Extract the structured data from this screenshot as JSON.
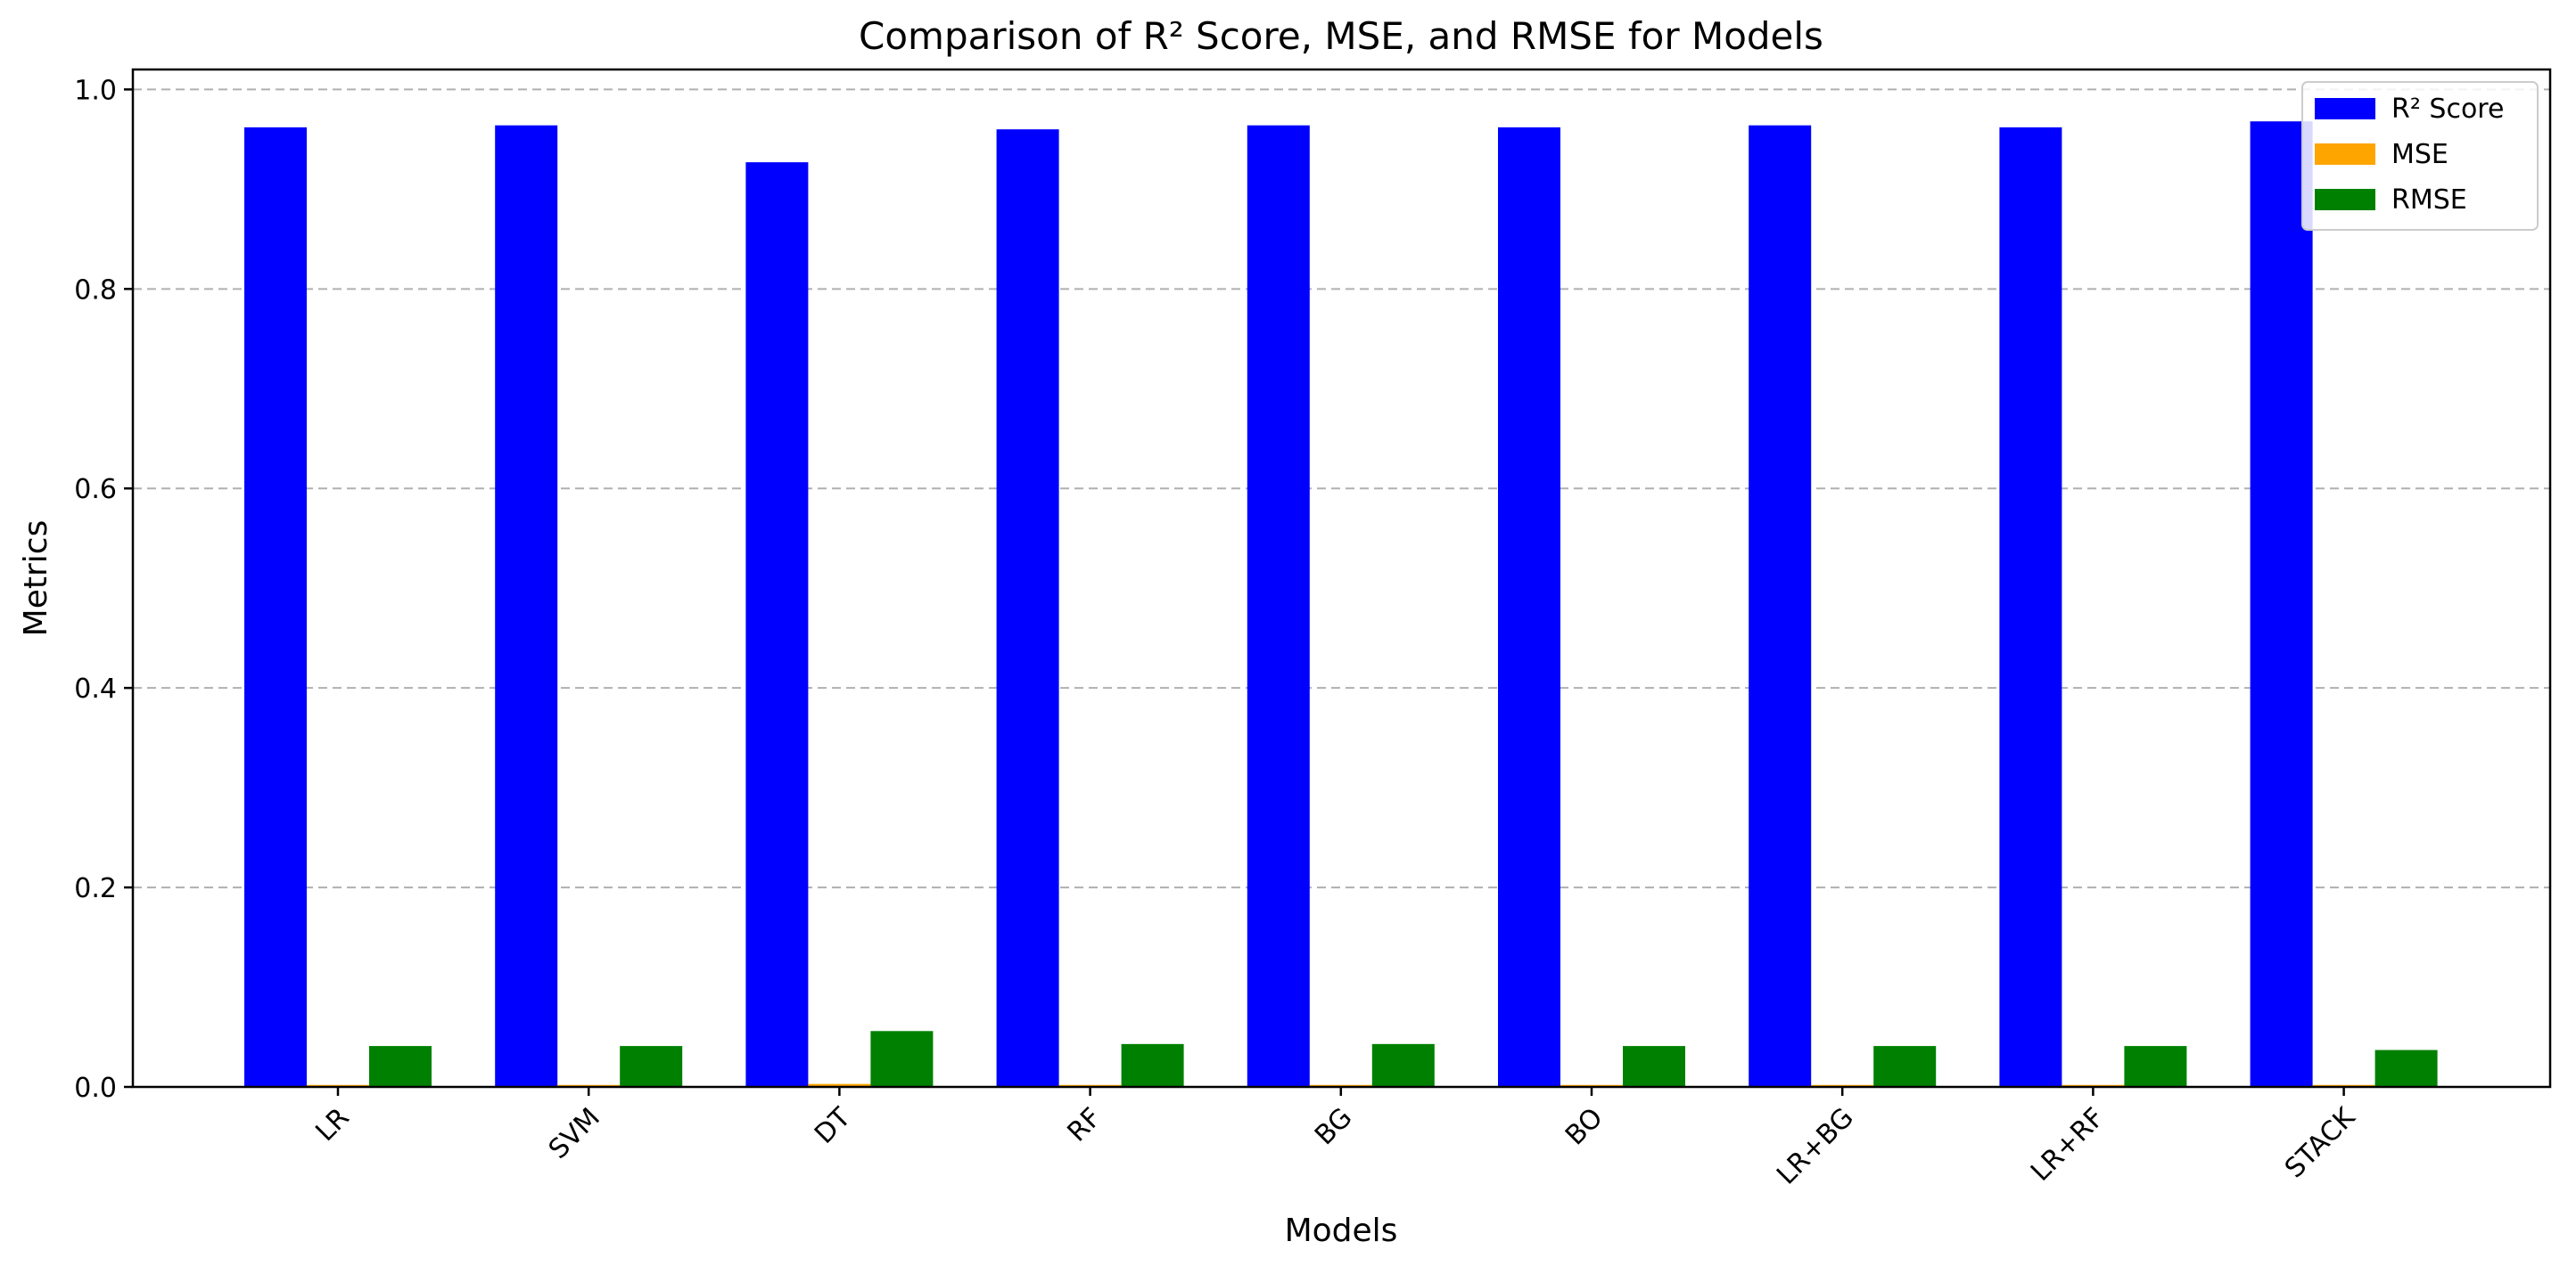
{
  "chart_data": {
    "type": "bar",
    "title": "Comparison of R² Score, MSE, and RMSE for Models",
    "xlabel": "Models",
    "ylabel": "Metrics",
    "ylim": [
      0,
      1.02
    ],
    "yticks": [
      "0.0",
      "0.2",
      "0.4",
      "0.6",
      "0.8",
      "1.0"
    ],
    "ytick_values": [
      0,
      0.2,
      0.4,
      0.6,
      0.8,
      1.0
    ],
    "grid": "y-dashed",
    "legend_position": "top-right",
    "categories": [
      "LR",
      "SVM",
      "DT",
      "RF",
      "BG",
      "BO",
      "LR+BG",
      "LR+RF",
      "STACK"
    ],
    "series": [
      {
        "name": "R² Score",
        "color": "#0000ff",
        "values": [
          0.962,
          0.964,
          0.927,
          0.96,
          0.964,
          0.962,
          0.964,
          0.962,
          0.968
        ]
      },
      {
        "name": "MSE",
        "color": "#ffa500",
        "values": [
          0.002,
          0.002,
          0.003,
          0.002,
          0.002,
          0.002,
          0.002,
          0.002,
          0.002
        ]
      },
      {
        "name": "RMSE",
        "color": "#008000",
        "values": [
          0.041,
          0.041,
          0.056,
          0.043,
          0.043,
          0.041,
          0.041,
          0.041,
          0.037
        ]
      }
    ]
  }
}
